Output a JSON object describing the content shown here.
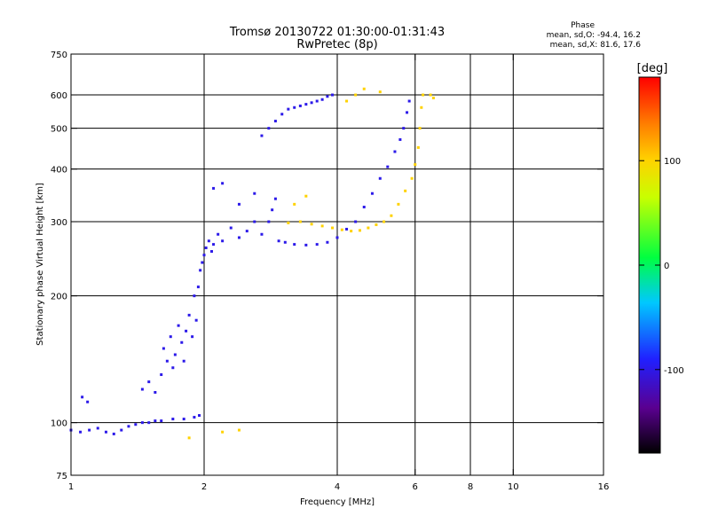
{
  "chart_data": {
    "type": "scatter",
    "title": "Tromsø 20130722 01:30:00-01:31:43",
    "subtitle": "RwPretec (8p)",
    "xlabel": "Frequency [MHz]",
    "ylabel": "Stationary phase Virtual Height [km]",
    "xscale": "log",
    "yscale": "log",
    "xlim": [
      1,
      16
    ],
    "ylim": [
      75,
      750
    ],
    "xticks": [
      1,
      2,
      4,
      6,
      8,
      10,
      16
    ],
    "yticks": [
      75,
      100,
      200,
      300,
      400,
      500,
      600,
      750
    ],
    "xgrid": [
      2,
      4,
      6,
      8,
      10
    ],
    "ygrid": [
      100,
      200,
      300,
      400,
      500,
      600
    ],
    "phase_legend": {
      "title": "Phase",
      "line1": "mean, sd,O: -94.4, 16.2",
      "line2": "mean, sd,X:  81.6, 17.6"
    },
    "colorbar": {
      "label": "[deg]",
      "range": [
        -180,
        180
      ],
      "ticks": [
        100,
        0,
        -100
      ],
      "colormap": "rainbow (black-purple-blue-cyan-green-yellow-red)"
    },
    "series": [
      {
        "name": "O-mode",
        "phase_deg": -100,
        "points": [
          [
            1.0,
            96
          ],
          [
            1.05,
            95
          ],
          [
            1.1,
            96
          ],
          [
            1.15,
            97
          ],
          [
            1.2,
            95
          ],
          [
            1.25,
            94
          ],
          [
            1.3,
            96
          ],
          [
            1.35,
            98
          ],
          [
            1.4,
            99
          ],
          [
            1.45,
            100
          ],
          [
            1.5,
            100
          ],
          [
            1.55,
            101
          ],
          [
            1.6,
            101
          ],
          [
            1.7,
            102
          ],
          [
            1.8,
            102
          ],
          [
            1.9,
            103
          ],
          [
            1.95,
            104
          ],
          [
            1.06,
            115
          ],
          [
            1.09,
            112
          ],
          [
            1.45,
            120
          ],
          [
            1.5,
            125
          ],
          [
            1.55,
            118
          ],
          [
            1.6,
            130
          ],
          [
            1.62,
            150
          ],
          [
            1.65,
            140
          ],
          [
            1.68,
            160
          ],
          [
            1.7,
            135
          ],
          [
            1.72,
            145
          ],
          [
            1.75,
            170
          ],
          [
            1.78,
            155
          ],
          [
            1.8,
            140
          ],
          [
            1.82,
            165
          ],
          [
            1.85,
            180
          ],
          [
            1.88,
            160
          ],
          [
            1.9,
            200
          ],
          [
            1.92,
            175
          ],
          [
            1.94,
            210
          ],
          [
            1.96,
            230
          ],
          [
            1.98,
            240
          ],
          [
            2.0,
            250
          ],
          [
            2.02,
            260
          ],
          [
            2.05,
            270
          ],
          [
            2.08,
            255
          ],
          [
            2.1,
            265
          ],
          [
            2.15,
            280
          ],
          [
            2.2,
            270
          ],
          [
            2.3,
            290
          ],
          [
            2.4,
            275
          ],
          [
            2.5,
            285
          ],
          [
            2.6,
            300
          ],
          [
            2.7,
            280
          ],
          [
            2.8,
            300
          ],
          [
            2.85,
            320
          ],
          [
            2.95,
            270
          ],
          [
            3.05,
            268
          ],
          [
            3.2,
            265
          ],
          [
            3.4,
            264
          ],
          [
            3.6,
            265
          ],
          [
            3.8,
            268
          ],
          [
            4.0,
            275
          ],
          [
            4.2,
            288
          ],
          [
            4.4,
            300
          ],
          [
            4.6,
            325
          ],
          [
            4.8,
            350
          ],
          [
            5.0,
            380
          ],
          [
            5.2,
            405
          ],
          [
            5.4,
            440
          ],
          [
            5.55,
            470
          ],
          [
            5.65,
            500
          ],
          [
            5.75,
            545
          ],
          [
            5.82,
            580
          ],
          [
            2.7,
            480
          ],
          [
            2.8,
            500
          ],
          [
            2.9,
            520
          ],
          [
            3.0,
            540
          ],
          [
            3.1,
            555
          ],
          [
            3.2,
            560
          ],
          [
            3.3,
            565
          ],
          [
            3.4,
            570
          ],
          [
            3.5,
            575
          ],
          [
            3.6,
            580
          ],
          [
            3.7,
            585
          ],
          [
            3.8,
            595
          ],
          [
            3.9,
            600
          ],
          [
            2.1,
            360
          ],
          [
            2.2,
            370
          ],
          [
            2.4,
            330
          ],
          [
            2.6,
            350
          ],
          [
            2.9,
            340
          ]
        ]
      },
      {
        "name": "X-mode",
        "phase_deg": 100,
        "points": [
          [
            3.1,
            298
          ],
          [
            3.3,
            300
          ],
          [
            3.5,
            296
          ],
          [
            3.7,
            293
          ],
          [
            3.9,
            290
          ],
          [
            4.1,
            287
          ],
          [
            4.3,
            285
          ],
          [
            4.5,
            286
          ],
          [
            4.7,
            290
          ],
          [
            4.9,
            295
          ],
          [
            5.1,
            300
          ],
          [
            5.3,
            310
          ],
          [
            5.5,
            330
          ],
          [
            5.7,
            355
          ],
          [
            5.9,
            380
          ],
          [
            6.0,
            410
          ],
          [
            6.1,
            450
          ],
          [
            6.15,
            500
          ],
          [
            6.2,
            560
          ],
          [
            6.25,
            600
          ],
          [
            3.2,
            330
          ],
          [
            3.4,
            345
          ],
          [
            4.2,
            580
          ],
          [
            4.4,
            600
          ],
          [
            4.6,
            620
          ],
          [
            5.0,
            610
          ],
          [
            6.5,
            600
          ],
          [
            6.6,
            590
          ],
          [
            1.85,
            92
          ],
          [
            2.2,
            95
          ],
          [
            2.4,
            96
          ]
        ]
      }
    ]
  }
}
